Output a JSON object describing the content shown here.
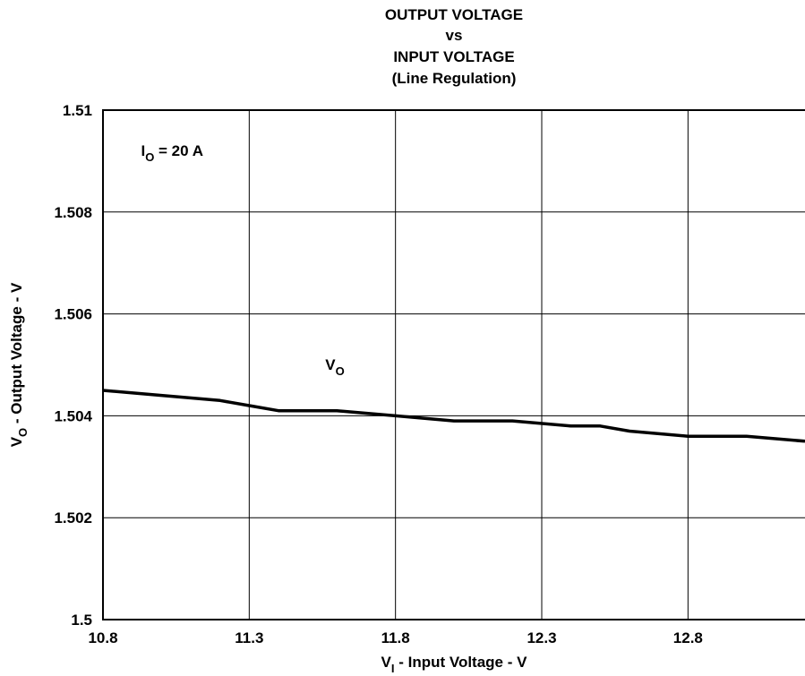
{
  "chart_data": {
    "type": "line",
    "title_lines": [
      "OUTPUT VOLTAGE",
      "vs",
      "INPUT VOLTAGE",
      "(Line Regulation)"
    ],
    "xlabel": {
      "main": "V",
      "sub": "I",
      "rest": " - Input Voltage - V"
    },
    "ylabel": {
      "main": "V",
      "sub": "O",
      "rest": " - Output Voltage - V"
    },
    "xlim": [
      10.8,
      13.2
    ],
    "ylim": [
      1.5,
      1.51
    ],
    "x_ticks": [
      10.8,
      11.3,
      11.8,
      12.3,
      12.8
    ],
    "x_tick_labels": [
      "10.8",
      "11.3",
      "11.8",
      "12.3",
      "12.8"
    ],
    "y_ticks": [
      1.5,
      1.502,
      1.504,
      1.506,
      1.508,
      1.51
    ],
    "y_tick_labels": [
      "1.5",
      "1.502",
      "1.504",
      "1.506",
      "1.508",
      "1.51"
    ],
    "grid": true,
    "annotations": [
      {
        "main": "I",
        "sub": "O",
        "rest": " = 20 A",
        "x": 10.93,
        "y": 1.5091
      },
      {
        "main": "V",
        "sub": "O",
        "rest": "",
        "x": 11.56,
        "y": 1.5049
      }
    ],
    "series": [
      {
        "name": "",
        "x": [
          10.8,
          11.0,
          11.2,
          11.3,
          11.4,
          11.6,
          11.8,
          12.0,
          12.2,
          12.4,
          12.5,
          12.6,
          12.8,
          13.0,
          13.2
        ],
        "y": [
          1.5045,
          1.5044,
          1.5043,
          1.5042,
          1.5041,
          1.5041,
          1.504,
          1.5039,
          1.5039,
          1.5038,
          1.5038,
          1.5037,
          1.5036,
          1.5036,
          1.5035
        ]
      }
    ]
  }
}
